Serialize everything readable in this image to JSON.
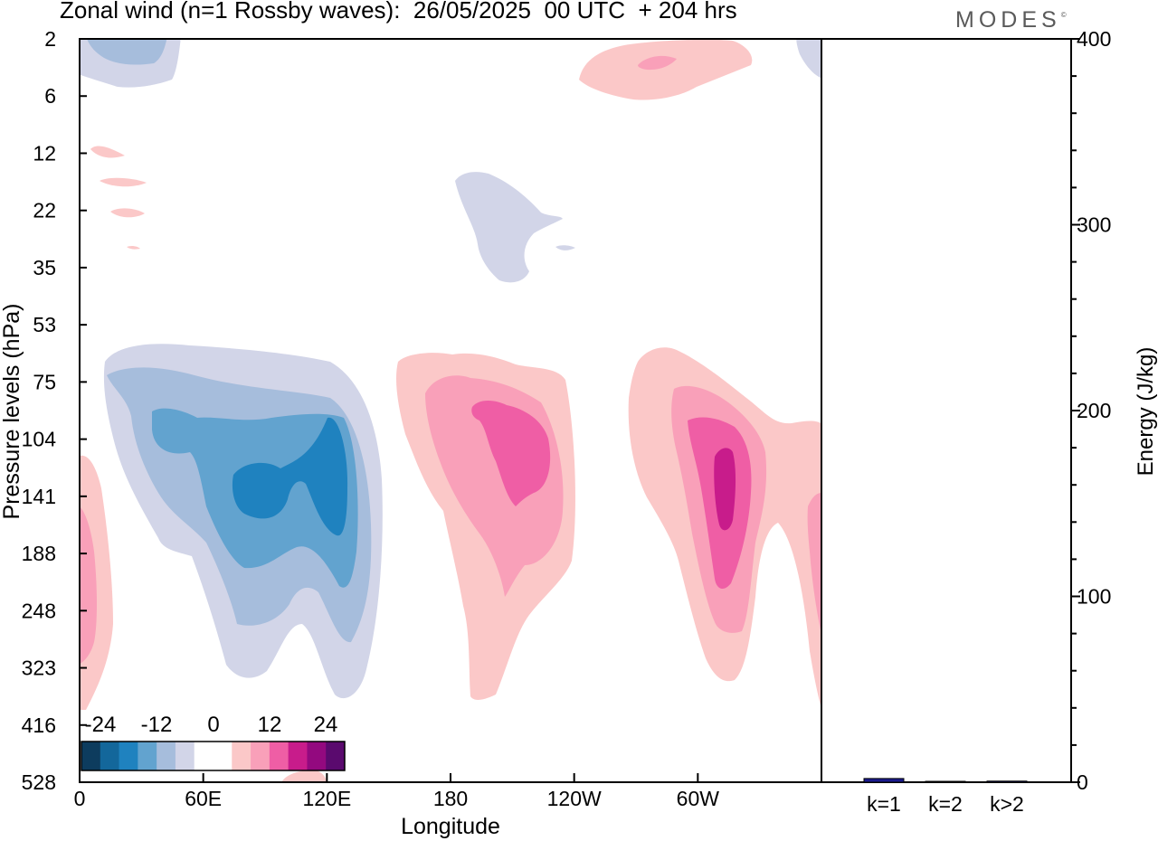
{
  "header": {
    "title": "Zonal wind (n=1 Rossby waves):  26/05/2025  00 UTC  + 204 hrs",
    "logo": "MODES",
    "logo_mark": "©"
  },
  "chart_data": [
    {
      "type": "heatmap",
      "title": "Zonal wind (n=1 Rossby waves):  26/05/2025  00 UTC  + 204 hrs",
      "xlabel": "Longitude",
      "ylabel": "Pressure levels (hPa)",
      "x_ticks": [
        "0",
        "60E",
        "120E",
        "180",
        "120W",
        "60W"
      ],
      "x_tick_values": [
        0,
        60,
        120,
        180,
        240,
        300
      ],
      "xlim": [
        0,
        360
      ],
      "y_ticks": [
        "2",
        "6",
        "12",
        "22",
        "35",
        "53",
        "75",
        "104",
        "141",
        "188",
        "248",
        "323",
        "416",
        "528"
      ],
      "colorbar": {
        "tick_labels": [
          "-24",
          "-12",
          "0",
          "12",
          "24"
        ],
        "colors": [
          "#0d3c5e",
          "#13679b",
          "#1f82bf",
          "#62a3cf",
          "#a6bddc",
          "#d2d5e8",
          "#ffffff",
          "#ffffff",
          "#fbc8c8",
          "#f9a0b9",
          "#ef5ea5",
          "#c81c8b",
          "#93097f",
          "#5a0a6e"
        ]
      },
      "features": [
        {
          "sign": "negative",
          "peak_level": "strongest",
          "lon_range": [
            10,
            145
          ],
          "pressure_range": [
            "53",
            "416"
          ]
        },
        {
          "sign": "positive",
          "peak_level": "strong",
          "lon_range": [
            155,
            240
          ],
          "pressure_range": [
            "75",
            "416"
          ]
        },
        {
          "sign": "positive",
          "peak_level": "strongest",
          "lon_range": [
            265,
            360
          ],
          "pressure_range": [
            "53",
            "416"
          ]
        },
        {
          "sign": "positive",
          "lon_range": [
            0,
            15
          ],
          "pressure_range": [
            "104",
            "416"
          ]
        },
        {
          "sign": "negative",
          "lon_range": [
            0,
            45
          ],
          "pressure_range": [
            "2",
            "6"
          ]
        },
        {
          "sign": "positive",
          "lon_range": [
            245,
            325
          ],
          "pressure_range": [
            "2",
            "6"
          ]
        },
        {
          "sign": "negative",
          "lon_range": [
            180,
            240
          ],
          "pressure_range": [
            "16",
            "40"
          ]
        }
      ]
    },
    {
      "type": "bar",
      "categories": [
        "k=1",
        "k=2",
        "k>2"
      ],
      "values": [
        2,
        0.4,
        0.6
      ],
      "ylabel": "Energy (J/kg)",
      "ylim": [
        0,
        400
      ],
      "y_ticks": [
        "0",
        "100",
        "200",
        "300",
        "400"
      ],
      "colors": [
        "#1a1a8c",
        "#1a1a8c",
        "#1a1a8c"
      ]
    }
  ]
}
